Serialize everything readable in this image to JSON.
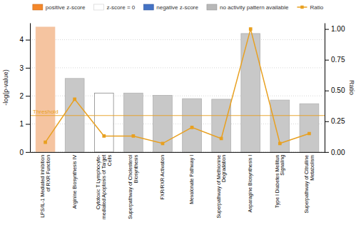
{
  "chart_data": {
    "type": "bar",
    "categories": [
      "LPS/IL-1 Mediated Inhibition\nof RXR Function",
      "Arginine Biosynthesis IV",
      "Cytotoxic T Lymphocyte-\nmediated Apoptosis of Target\nCells",
      "Superpathway of Cholesterol\nBiosynthesis",
      "FXR/RXR Activation",
      "Mevalonate Pathway I",
      "Superpathway of Methionine\nDegradation",
      "Asparagine Biosynthesis I",
      "Type I Diabetes Mellitus\nSignaling",
      "Superpathway of Citrulline\nMetabolism"
    ],
    "series": [
      {
        "type": "bar",
        "values": [
          4.45,
          2.62,
          2.1,
          2.1,
          2.02,
          1.9,
          1.88,
          4.22,
          1.85,
          1.72
        ],
        "colors": [
          "#f5c4a0",
          "#c8c8c8",
          "#ffffff",
          "#c8c8c8",
          "#c8c8c8",
          "#c8c8c8",
          "#c8c8c8",
          "#c8c8c8",
          "#c8c8c8",
          "#c8c8c8"
        ],
        "edge_colors": [
          "#f5c4a0",
          "#b0b0b0",
          "#888888",
          "#b0b0b0",
          "#b0b0b0",
          "#b0b0b0",
          "#b0b0b0",
          "#b0b0b0",
          "#b0b0b0",
          "#b0b0b0"
        ]
      },
      {
        "name": "Ratio",
        "type": "line",
        "axis": "y2",
        "color": "#e8a020",
        "marker": "square",
        "values": [
          0.08,
          0.43,
          0.13,
          0.13,
          0.07,
          0.2,
          0.11,
          1.0,
          0.07,
          0.15
        ]
      }
    ],
    "legend_items": [
      {
        "name": "positive z-score",
        "color": "#f4872a"
      },
      {
        "name": "z-score = 0",
        "color": "#ffffff"
      },
      {
        "name": "negative z-score",
        "color": "#4472c4"
      },
      {
        "name": "no activity pattern available",
        "color": "#b8b8b8"
      }
    ],
    "legend": "top",
    "threshold": {
      "value": 1.3,
      "label": "Threshold",
      "color": "#e8a020"
    },
    "ylabel": "-log(p-value)",
    "y2label": "Ratio",
    "ylim": [
      0,
      4.6
    ],
    "yticks": [
      0,
      1,
      2,
      3,
      4
    ],
    "y2lim": [
      0,
      1.05
    ],
    "y2ticks": [
      {
        "value": 0,
        "label": "0.00"
      },
      0.25,
      {
        "value": 0.5,
        "label": "0.50"
      },
      0.75,
      {
        "value": 1.0,
        "label": "1.00"
      }
    ],
    "grid": true
  }
}
